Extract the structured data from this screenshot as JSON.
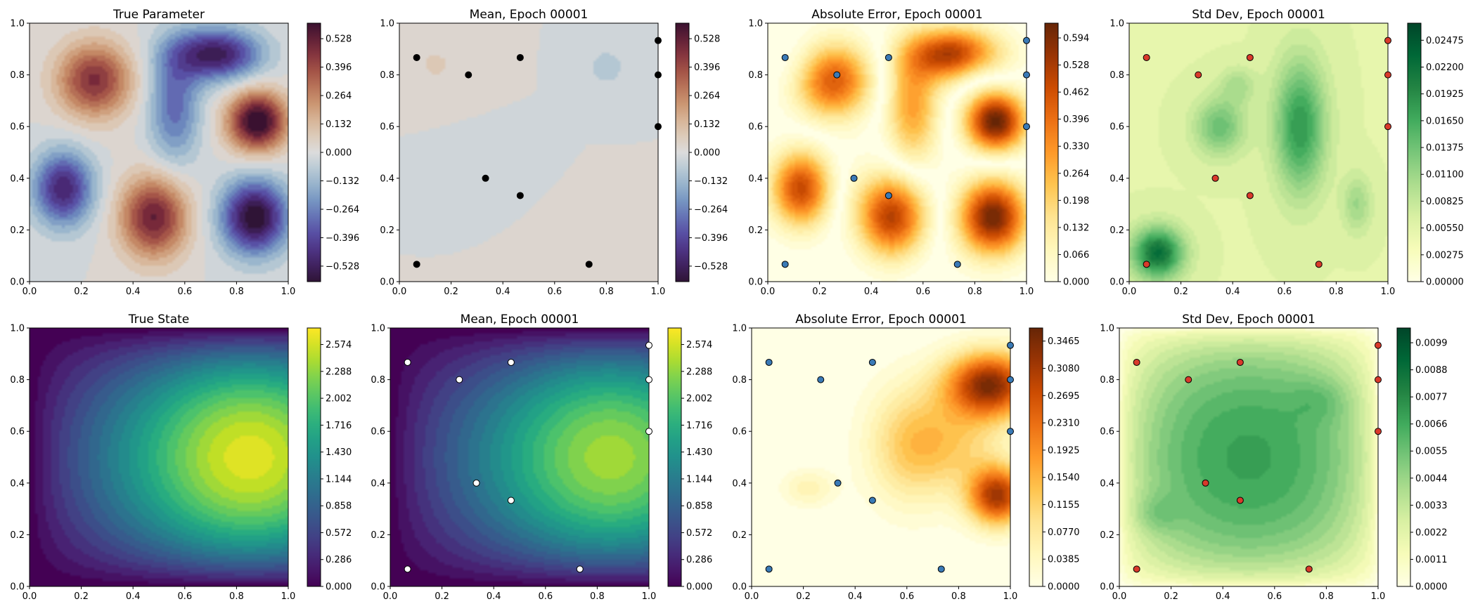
{
  "chart_data": [
    {
      "type": "heatmap",
      "title": "True Parameter",
      "xlim": [
        0,
        1
      ],
      "ylim": [
        0,
        1
      ],
      "xticks": [
        "0.0",
        "0.2",
        "0.4",
        "0.6",
        "0.8",
        "1.0"
      ],
      "yticks": [
        "0.0",
        "0.2",
        "0.4",
        "0.6",
        "0.8",
        "1.0"
      ],
      "colormap": "twilight_shifted",
      "colorbar_ticks": [
        "−0.528",
        "−0.396",
        "−0.264",
        "−0.132",
        "0.000",
        "0.132",
        "0.264",
        "0.396",
        "0.528"
      ],
      "clim": [
        -0.6,
        0.6
      ],
      "field": "parameter",
      "field_scale": 1.0,
      "sensors": null
    },
    {
      "type": "heatmap",
      "title": "Mean, Epoch 00001",
      "xlim": [
        0,
        1
      ],
      "ylim": [
        0,
        1
      ],
      "xticks": [
        "0.0",
        "0.2",
        "0.4",
        "0.6",
        "0.8",
        "1.0"
      ],
      "yticks": [
        "0.0",
        "0.2",
        "0.4",
        "0.6",
        "0.8",
        "1.0"
      ],
      "colormap": "twilight_shifted",
      "colorbar_ticks": [
        "−0.528",
        "−0.396",
        "−0.264",
        "−0.132",
        "0.000",
        "0.132",
        "0.264",
        "0.396",
        "0.528"
      ],
      "clim": [
        -0.6,
        0.6
      ],
      "field": "mean_parameter",
      "field_scale": 1.0,
      "sensors": {
        "color": "#000000",
        "edge": "#000000"
      }
    },
    {
      "type": "heatmap",
      "title": "Absolute Error, Epoch 00001",
      "xlim": [
        0,
        1
      ],
      "ylim": [
        0,
        1
      ],
      "xticks": [
        "0.0",
        "0.2",
        "0.4",
        "0.6",
        "0.8",
        "1.0"
      ],
      "yticks": [
        "0.0",
        "0.2",
        "0.4",
        "0.6",
        "0.8",
        "1.0"
      ],
      "colormap": "YlOrBr",
      "colorbar_ticks": [
        "0.000",
        "0.066",
        "0.132",
        "0.198",
        "0.264",
        "0.330",
        "0.396",
        "0.462",
        "0.528",
        "0.594"
      ],
      "clim": [
        0,
        0.63
      ],
      "field": "abs_error_parameter",
      "field_scale": 1.0,
      "sensors": {
        "color": "#3a7ab6",
        "edge": "#000000"
      }
    },
    {
      "type": "heatmap",
      "title": "Std Dev, Epoch 00001",
      "xlim": [
        0,
        1
      ],
      "ylim": [
        0,
        1
      ],
      "xticks": [
        "0.0",
        "0.2",
        "0.4",
        "0.6",
        "0.8",
        "1.0"
      ],
      "yticks": [
        "0.0",
        "0.2",
        "0.4",
        "0.6",
        "0.8",
        "1.0"
      ],
      "colormap": "YlGn",
      "colorbar_ticks": [
        "0.00000",
        "0.00275",
        "0.00550",
        "0.00825",
        "0.01100",
        "0.01375",
        "0.01650",
        "0.01925",
        "0.02200",
        "0.02475"
      ],
      "clim": [
        0,
        0.0265
      ],
      "field": "std_parameter",
      "field_scale": 1.0,
      "sensors": {
        "color": "#d93a2b",
        "edge": "#000000"
      }
    },
    {
      "type": "heatmap",
      "title": "True State",
      "xlim": [
        0,
        1
      ],
      "ylim": [
        0,
        1
      ],
      "xticks": [
        "0.0",
        "0.2",
        "0.4",
        "0.6",
        "0.8",
        "1.0"
      ],
      "yticks": [
        "0.0",
        "0.2",
        "0.4",
        "0.6",
        "0.8",
        "1.0"
      ],
      "colormap": "viridis",
      "colorbar_ticks": [
        "0.000",
        "0.286",
        "0.572",
        "0.858",
        "1.144",
        "1.430",
        "1.716",
        "2.002",
        "2.288",
        "2.574"
      ],
      "clim": [
        0,
        2.75
      ],
      "field": "state",
      "field_scale": 1.0,
      "sensors": null
    },
    {
      "type": "heatmap",
      "title": "Mean, Epoch 00001",
      "xlim": [
        0,
        1
      ],
      "ylim": [
        0,
        1
      ],
      "xticks": [
        "0.0",
        "0.2",
        "0.4",
        "0.6",
        "0.8",
        "1.0"
      ],
      "yticks": [
        "0.0",
        "0.2",
        "0.4",
        "0.6",
        "0.8",
        "1.0"
      ],
      "colormap": "viridis",
      "colorbar_ticks": [
        "0.000",
        "0.286",
        "0.572",
        "0.858",
        "1.144",
        "1.430",
        "1.716",
        "2.002",
        "2.288",
        "2.574"
      ],
      "clim": [
        0,
        2.75
      ],
      "field": "state",
      "field_scale": 0.9,
      "sensors": {
        "color": "#ffffff",
        "edge": "#000000"
      }
    },
    {
      "type": "heatmap",
      "title": "Absolute Error, Epoch 00001",
      "xlim": [
        0,
        1
      ],
      "ylim": [
        0,
        1
      ],
      "xticks": [
        "0.0",
        "0.2",
        "0.4",
        "0.6",
        "0.8",
        "1.0"
      ],
      "yticks": [
        "0.0",
        "0.2",
        "0.4",
        "0.6",
        "0.8",
        "1.0"
      ],
      "colormap": "YlOrBr",
      "colorbar_ticks": [
        "0.0000",
        "0.0385",
        "0.0770",
        "0.1155",
        "0.1540",
        "0.1925",
        "0.2310",
        "0.2695",
        "0.3080",
        "0.3465"
      ],
      "clim": [
        0,
        0.365
      ],
      "field": "abs_error_state",
      "field_scale": 1.0,
      "sensors": {
        "color": "#3a7ab6",
        "edge": "#000000"
      }
    },
    {
      "type": "heatmap",
      "title": "Std Dev, Epoch 00001",
      "xlim": [
        0,
        1
      ],
      "ylim": [
        0,
        1
      ],
      "xticks": [
        "0.0",
        "0.2",
        "0.4",
        "0.6",
        "0.8",
        "1.0"
      ],
      "yticks": [
        "0.0",
        "0.2",
        "0.4",
        "0.6",
        "0.8",
        "1.0"
      ],
      "colormap": "YlGn",
      "colorbar_ticks": [
        "0.0000",
        "0.0011",
        "0.0022",
        "0.0033",
        "0.0044",
        "0.0055",
        "0.0066",
        "0.0077",
        "0.0088",
        "0.0099"
      ],
      "clim": [
        0,
        0.0105
      ],
      "field": "std_state",
      "field_scale": 1.0,
      "sensors": {
        "color": "#d93a2b",
        "edge": "#000000"
      }
    }
  ],
  "sensor_locations": [
    [
      0.067,
      0.867
    ],
    [
      0.267,
      0.8
    ],
    [
      0.467,
      0.867
    ],
    [
      1.0,
      0.933
    ],
    [
      1.0,
      0.8
    ],
    [
      1.0,
      0.6
    ],
    [
      0.333,
      0.4
    ],
    [
      0.467,
      0.333
    ],
    [
      0.067,
      0.067
    ],
    [
      0.733,
      0.067
    ]
  ]
}
